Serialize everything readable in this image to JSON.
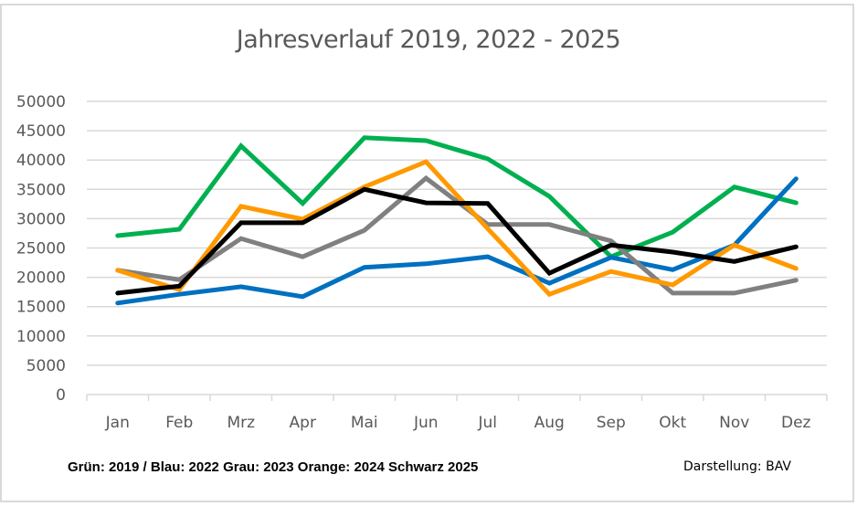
{
  "chart_data": {
    "type": "line",
    "title": "Jahresverlauf 2019, 2022 - 2025",
    "xlabel": "",
    "ylabel": "",
    "categories": [
      "Jan",
      "Feb",
      "Mrz",
      "Apr",
      "Mai",
      "Jun",
      "Jul",
      "Aug",
      "Sep",
      "Okt",
      "Nov",
      "Dez"
    ],
    "ylim": [
      0,
      50000
    ],
    "yticks": [
      0,
      5000,
      10000,
      15000,
      20000,
      25000,
      30000,
      35000,
      40000,
      45000,
      50000
    ],
    "grid": true,
    "legend": "none",
    "series": [
      {
        "name": "2019",
        "color": "#00b050",
        "values": [
          27100,
          28200,
          42400,
          32600,
          43800,
          43300,
          40200,
          33800,
          23500,
          27700,
          35400,
          32700
        ]
      },
      {
        "name": "2022",
        "color": "#0070c0",
        "values": [
          15600,
          17100,
          18400,
          16700,
          21700,
          22300,
          23500,
          19000,
          23400,
          21300,
          25500,
          36800
        ]
      },
      {
        "name": "2023",
        "color": "#808080",
        "values": [
          21200,
          19600,
          26600,
          23500,
          28000,
          36900,
          29000,
          29000,
          26200,
          17300,
          17300,
          19500
        ]
      },
      {
        "name": "2024",
        "color": "#ff9900",
        "values": [
          21200,
          17900,
          32100,
          29900,
          35400,
          39700,
          28300,
          17100,
          21000,
          18700,
          25500,
          21500
        ]
      },
      {
        "name": "2025",
        "color": "#000000",
        "values": [
          17300,
          18500,
          29300,
          29300,
          35000,
          32700,
          32600,
          20700,
          25500,
          24300,
          22700,
          25200
        ]
      }
    ],
    "annotations": [
      "Grün: 2019 / Blau: 2022 Grau: 2023 Orange: 2024 Schwarz 2025",
      "Darstellung: BAV"
    ]
  },
  "notes": {
    "legend_text": "Grün: 2019 / Blau: 2022 Grau: 2023 Orange: 2024 Schwarz 2025",
    "credit_text": "Darstellung: BAV"
  }
}
